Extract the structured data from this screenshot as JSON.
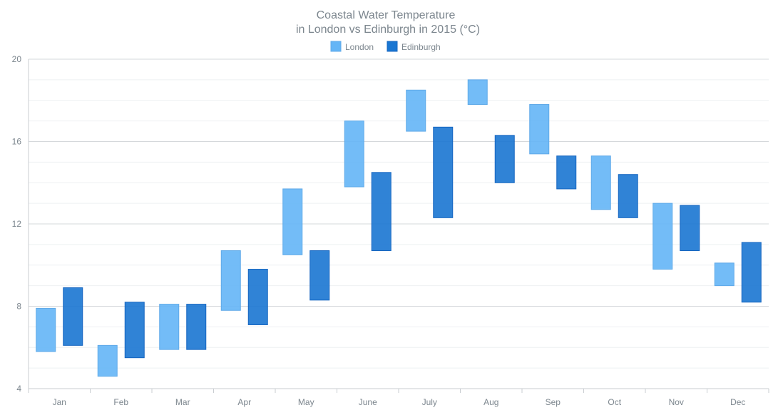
{
  "chart_data": {
    "type": "range-bar",
    "title": "Coastal Water Temperature",
    "subtitle": "in London vs Edinburgh in 2015 (°C)",
    "categories": [
      "Jan",
      "Feb",
      "Mar",
      "Apr",
      "May",
      "June",
      "July",
      "Aug",
      "Sep",
      "Oct",
      "Nov",
      "Dec"
    ],
    "y_ticks": [
      4,
      8,
      12,
      16,
      20
    ],
    "ylim": [
      4,
      20
    ],
    "grid": true,
    "legend_position": "top-center",
    "series": [
      {
        "name": "London",
        "color": "#64b5f6",
        "stroke": "#5fa9e8",
        "lows": [
          5.8,
          4.6,
          5.9,
          7.8,
          10.5,
          13.8,
          16.5,
          17.8,
          15.4,
          12.7,
          9.8,
          9.0
        ],
        "highs": [
          7.9,
          6.1,
          8.1,
          10.7,
          13.7,
          17.0,
          18.5,
          19.0,
          17.8,
          15.3,
          13.0,
          10.1
        ]
      },
      {
        "name": "Edinburgh",
        "color": "#1976d2",
        "stroke": "#1565c0",
        "lows": [
          6.1,
          5.5,
          5.9,
          7.1,
          8.3,
          10.7,
          12.3,
          14.0,
          13.7,
          12.3,
          10.7,
          8.2
        ],
        "highs": [
          8.9,
          8.2,
          8.1,
          9.8,
          10.7,
          14.5,
          16.7,
          16.3,
          15.3,
          14.4,
          12.9,
          11.1
        ]
      }
    ]
  }
}
